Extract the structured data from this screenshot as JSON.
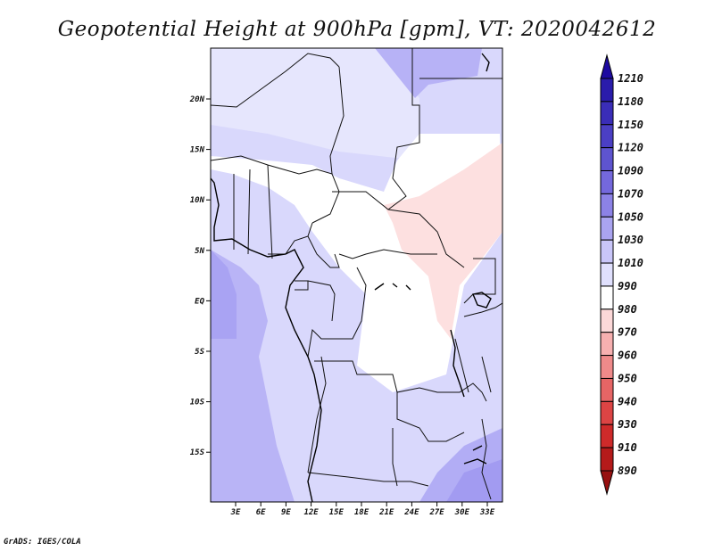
{
  "title": "Geopotential Height at 900hPa [gpm], VT: 2020042612",
  "credit": "GrADS: IGES/COLA",
  "map": {
    "lon_labels": [
      "3E",
      "6E",
      "9E",
      "12E",
      "15E",
      "18E",
      "21E",
      "24E",
      "27E",
      "30E",
      "33E"
    ],
    "lat_labels": [
      "20N",
      "15N",
      "10N",
      "5N",
      "EQ",
      "5S",
      "10S",
      "15S"
    ]
  },
  "colorbar": {
    "levels": [
      "1210",
      "1180",
      "1150",
      "1120",
      "1090",
      "1070",
      "1050",
      "1030",
      "1010",
      "990",
      "980",
      "970",
      "960",
      "950",
      "940",
      "930",
      "910",
      "890"
    ],
    "colors": [
      "#1d0aa0",
      "#2a1cab",
      "#3a2db8",
      "#4b3fc4",
      "#5e54cf",
      "#7468dc",
      "#8c82e6",
      "#aaa4f0",
      "#c9c6f9",
      "#e0e0fd",
      "#ffffff",
      "#fcd8d8",
      "#f7b0b0",
      "#ef8a8a",
      "#e66565",
      "#dc4444",
      "#ce2a2a",
      "#b51a1a",
      "#971010"
    ]
  },
  "legend_colors": {
    "ocean_low": "#b9b4f6",
    "land_mid": "#d6d6fb",
    "neutral": "#ffffff",
    "warm": "#fde0e0"
  }
}
